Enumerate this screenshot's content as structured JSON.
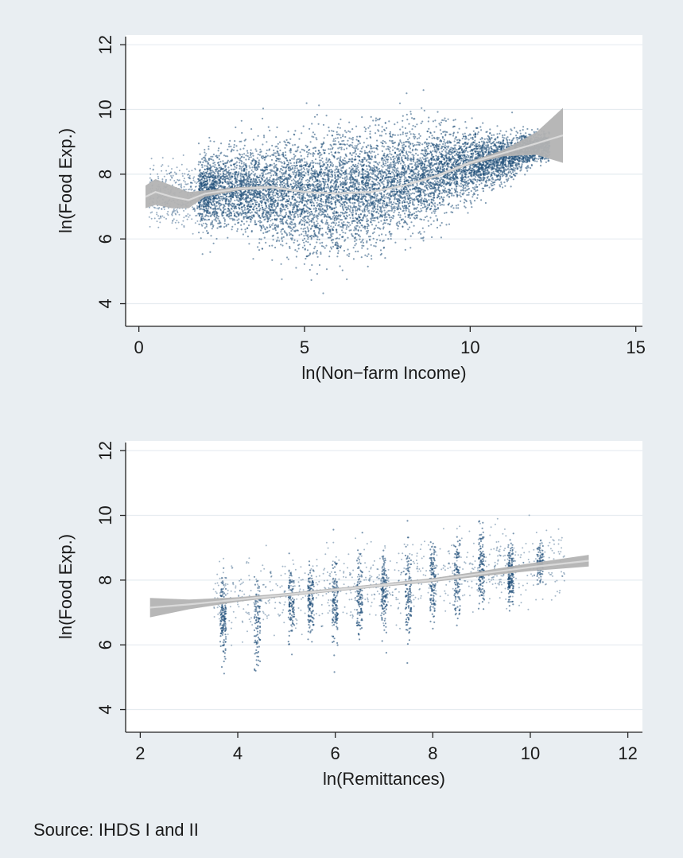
{
  "source_note": "Source: IHDS I and II",
  "colors": {
    "background": "#e9eef2",
    "plot_background": "#ffffff",
    "points": "#1f4e79",
    "fit_band": "#b3b3b3",
    "fit_line": "#d9d9d9",
    "grid": "#e6ecf0"
  },
  "chart_data": [
    {
      "type": "scatter",
      "xlabel": "ln(Non−farm Income)",
      "ylabel": "ln(Food Exp.)",
      "xlim": [
        -0.4,
        15.2
      ],
      "ylim": [
        3.3,
        12.3
      ],
      "xticks": [
        0,
        5,
        10,
        15
      ],
      "yticks": [
        4,
        6,
        8,
        10,
        12
      ],
      "grid": true,
      "legend": "none",
      "scatter_summary": [
        {
          "x": 2,
          "y_range": [
            6.0,
            8.9
          ]
        },
        {
          "x": 3,
          "y_range": [
            5.9,
            9.2
          ]
        },
        {
          "x": 4,
          "y_range": [
            5.5,
            9.4
          ]
        },
        {
          "x": 5,
          "y_range": [
            5.0,
            9.6
          ]
        },
        {
          "x": 6,
          "y_range": [
            5.0,
            9.7
          ]
        },
        {
          "x": 7,
          "y_range": [
            5.3,
            9.8
          ]
        },
        {
          "x": 8,
          "y_range": [
            5.8,
            9.8
          ]
        },
        {
          "x": 9,
          "y_range": [
            6.4,
            9.8
          ]
        },
        {
          "x": 10,
          "y_range": [
            7.0,
            9.6
          ]
        },
        {
          "x": 11,
          "y_range": [
            7.6,
            9.4
          ]
        },
        {
          "x": 12,
          "y_range": [
            8.3,
            9.4
          ]
        }
      ],
      "fit_line": {
        "x": [
          0.2,
          0.5,
          1.0,
          1.5,
          2.0,
          3.0,
          4.0,
          5.0,
          6.0,
          7.0,
          8.0,
          9.0,
          10.0,
          11.0,
          12.0,
          12.8
        ],
        "y": [
          7.3,
          7.45,
          7.3,
          7.2,
          7.4,
          7.55,
          7.6,
          7.45,
          7.4,
          7.45,
          7.65,
          7.95,
          8.35,
          8.65,
          8.95,
          9.2
        ],
        "band_halfwidth": [
          0.35,
          0.4,
          0.35,
          0.25,
          0.1,
          0.05,
          0.04,
          0.03,
          0.03,
          0.03,
          0.03,
          0.04,
          0.05,
          0.1,
          0.35,
          0.85
        ]
      }
    },
    {
      "type": "scatter",
      "xlabel": "ln(Remittances)",
      "ylabel": "ln(Food Exp.)",
      "xlim": [
        1.7,
        12.3
      ],
      "ylim": [
        3.3,
        12.3
      ],
      "xticks": [
        2,
        4,
        6,
        8,
        10,
        12
      ],
      "yticks": [
        4,
        6,
        8,
        10,
        12
      ],
      "grid": true,
      "legend": "none",
      "scatter_summary": [
        {
          "x": 3.7,
          "y_range": [
            5.2,
            8.5
          ]
        },
        {
          "x": 4.4,
          "y_range": [
            4.5,
            8.7
          ]
        },
        {
          "x": 5.1,
          "y_range": [
            5.6,
            8.8
          ]
        },
        {
          "x": 5.5,
          "y_range": [
            5.8,
            8.9
          ]
        },
        {
          "x": 6.0,
          "y_range": [
            5.5,
            9.1
          ]
        },
        {
          "x": 6.5,
          "y_range": [
            5.8,
            9.2
          ]
        },
        {
          "x": 7.0,
          "y_range": [
            5.9,
            9.4
          ]
        },
        {
          "x": 7.5,
          "y_range": [
            5.5,
            9.6
          ]
        },
        {
          "x": 8.0,
          "y_range": [
            6.2,
            9.7
          ]
        },
        {
          "x": 8.5,
          "y_range": [
            6.3,
            9.8
          ]
        },
        {
          "x": 9.0,
          "y_range": [
            6.8,
            9.9
          ]
        },
        {
          "x": 9.6,
          "y_range": [
            7.0,
            9.5
          ]
        },
        {
          "x": 10.2,
          "y_range": [
            7.8,
            9.2
          ]
        }
      ],
      "fit_line": {
        "x": [
          2.2,
          3.0,
          4.0,
          5.0,
          6.0,
          7.0,
          8.0,
          9.0,
          10.0,
          11.2
        ],
        "y": [
          7.15,
          7.25,
          7.4,
          7.55,
          7.7,
          7.85,
          8.0,
          8.2,
          8.4,
          8.6
        ],
        "band_halfwidth": [
          0.3,
          0.15,
          0.07,
          0.05,
          0.05,
          0.05,
          0.06,
          0.08,
          0.12,
          0.18
        ]
      }
    }
  ]
}
